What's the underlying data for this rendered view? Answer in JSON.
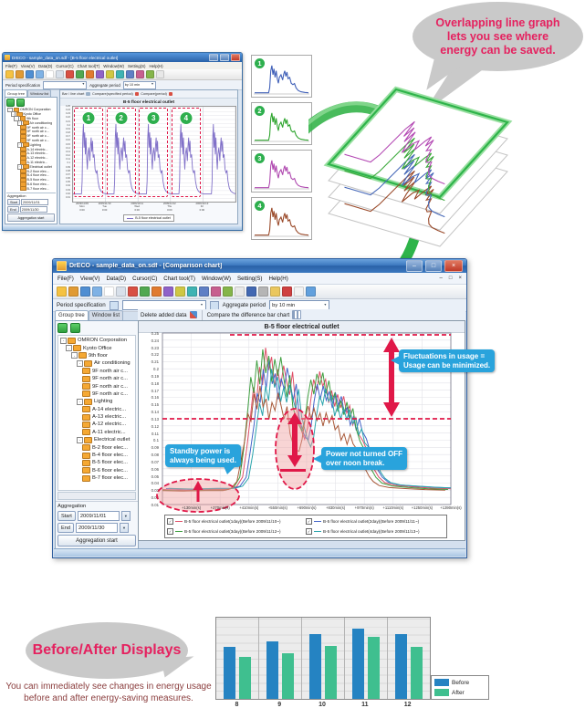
{
  "balloon_top": {
    "lines": [
      "Overlapping line graph",
      "lets you see where",
      "energy can be saved."
    ]
  },
  "balloon_bottom": {
    "title": "Before/After Displays"
  },
  "caption": {
    "line1": "You can immediately see changes in energy usage",
    "line2": "before and after energy-saving measures."
  },
  "icons": {
    "check": "✓",
    "dropdown": "▼",
    "minus": "-"
  },
  "colors": {
    "accent_pink": "#e5215f",
    "callout_blue": "#29a3dc",
    "annotation_red": "#e01848",
    "marker_green": "#2eaf4e",
    "bubble_gray": "#c9c9c9"
  },
  "toolbar_icon_colors": [
    "#f5c242",
    "#e09a33",
    "#4f8ed2",
    "#7fb2e5",
    "#ffffff",
    "#d8e0ea",
    "#d85043",
    "#51a851",
    "#e07b30",
    "#8f62c8",
    "#cfc743",
    "#3fb3b3",
    "#5f7fc5",
    "#c75f8f",
    "#85b54a",
    "#e8e8e8",
    "#4268b2",
    "#b5b5b5",
    "#eac75f",
    "#cf4040",
    "#f2f2f2",
    "#62a0dd"
  ],
  "shared": {
    "menus": [
      "File(F)",
      "View(V)",
      "Data(D)",
      "Cursor(C)",
      "Chart tool(T)",
      "Window(W)",
      "Setting(S)",
      "Help(H)"
    ],
    "tabs": [
      "Group tree",
      "Window list"
    ],
    "period_label": "Period specification",
    "aggregate_label": "Aggregate period",
    "aggregate_value": "by 10 min",
    "tree": [
      {
        "label": "OMRON Corporation",
        "depth": 0,
        "kind": "folder"
      },
      {
        "label": "Kyoto Office",
        "depth": 1,
        "kind": "folder"
      },
      {
        "label": "9th floor",
        "depth": 2,
        "kind": "folder"
      },
      {
        "label": "Air conditioning",
        "depth": 3,
        "kind": "folder"
      },
      {
        "label": "9F north air c...",
        "depth": 4,
        "kind": "leaf"
      },
      {
        "label": "9F north air c...",
        "depth": 4,
        "kind": "leaf"
      },
      {
        "label": "9F north air c...",
        "depth": 4,
        "kind": "leaf"
      },
      {
        "label": "9F north air c...",
        "depth": 4,
        "kind": "leaf"
      },
      {
        "label": "Lighting",
        "depth": 3,
        "kind": "folder"
      },
      {
        "label": "A-14 electric...",
        "depth": 4,
        "kind": "leaf"
      },
      {
        "label": "A-13 electric...",
        "depth": 4,
        "kind": "leaf"
      },
      {
        "label": "A-12 electric...",
        "depth": 4,
        "kind": "leaf"
      },
      {
        "label": "A-11 electric...",
        "depth": 4,
        "kind": "leaf"
      },
      {
        "label": "Electrical outlet",
        "depth": 3,
        "kind": "folder"
      },
      {
        "label": "B-2 floor elec...",
        "depth": 4,
        "kind": "leaf"
      },
      {
        "label": "B-4 floor elec...",
        "depth": 4,
        "kind": "leaf"
      },
      {
        "label": "B-5 floor elec...",
        "depth": 4,
        "kind": "leaf"
      },
      {
        "label": "B-6 floor elec...",
        "depth": 4,
        "kind": "leaf"
      },
      {
        "label": "B-7 floor elec...",
        "depth": 4,
        "kind": "leaf"
      }
    ],
    "aggregation": {
      "label": "Aggregation",
      "start_label": "Start",
      "start_value": "2009/11/01",
      "end_label": "End",
      "end_value": "2009/11/30",
      "button_label": "Aggregation start"
    }
  },
  "mini_window": {
    "title": "DrECO - sample_data_on.sdf - [B-5 floor electrical outlet]",
    "chart_toolbar": [
      "Bar / line chart",
      "Compare(specified period)",
      "Compare(period)"
    ],
    "legend_label": "B-5 floor electrical outlet"
  },
  "main_window": {
    "title": "DrECO - sample_data_on.sdf - [Comparison chart]",
    "chart_toolbar": [
      "Delete added data",
      "Compare the difference bar chart"
    ],
    "window_controls": {
      "minimize": "–",
      "maximize": "□",
      "close": "×"
    },
    "callouts": {
      "fluctuation": {
        "line1": "Fluctuations in usage =",
        "line2": "Usage can be minimized."
      },
      "standby": {
        "line1": "Standby power is",
        "line2": "always being used."
      },
      "noon": {
        "line1": "Power not turned OFF",
        "line2": "over noon break."
      }
    },
    "legend_items": [
      {
        "color": "#e05068",
        "label": "B-5 floor electrical outlet(1day)(Before 2009/11/10~)"
      },
      {
        "color": "#4464c8",
        "label": "B-5 floor electrical outlet(2day)(Before 2009/11/11~)"
      },
      {
        "color": "#3f9f40",
        "label": "B-5 floor electrical outlet(3day)(Before 2009/11/12~)"
      },
      {
        "color": "#2aa4ac",
        "label": "B-5 floor electrical outlet(4day)(Before 2009/11/13~)"
      }
    ]
  },
  "thumbnails": {
    "numbers": [
      "1",
      "2",
      "3",
      "4"
    ],
    "colors": [
      "#4060b8",
      "#2fa52f",
      "#b04ab0",
      "#9a4a2a"
    ]
  },
  "chart_data": [
    {
      "id": "daily-profile",
      "type": "line",
      "title": "B-5 floor electrical outlet",
      "series": [
        {
          "name": "B-5 floor electrical outlet",
          "color": "#8070c8"
        }
      ],
      "days": 5,
      "day_markers": [
        "1",
        "2",
        "3",
        "4"
      ],
      "ylim": [
        0,
        0.25
      ],
      "ytick": 0.01,
      "profile": [
        [
          0,
          0.05
        ],
        [
          0.26,
          0.05
        ],
        [
          0.28,
          0.2
        ],
        [
          0.3,
          0.72
        ],
        [
          0.32,
          0.88
        ],
        [
          0.34,
          0.6
        ],
        [
          0.36,
          0.78
        ],
        [
          0.38,
          0.52
        ],
        [
          0.4,
          0.72
        ],
        [
          0.42,
          0.48
        ],
        [
          0.44,
          0.34
        ],
        [
          0.46,
          0.52
        ],
        [
          0.49,
          0.6
        ],
        [
          0.52,
          0.44
        ],
        [
          0.54,
          0.62
        ],
        [
          0.56,
          0.72
        ],
        [
          0.58,
          0.55
        ],
        [
          0.6,
          0.68
        ],
        [
          0.62,
          0.48
        ],
        [
          0.65,
          0.52
        ],
        [
          0.68,
          0.34
        ],
        [
          0.71,
          0.3
        ],
        [
          0.74,
          0.33
        ],
        [
          0.77,
          0.2
        ],
        [
          0.81,
          0.12
        ],
        [
          0.86,
          0.08
        ],
        [
          0.93,
          0.06
        ],
        [
          1,
          0.05
        ]
      ],
      "x_labels": [
        {
          "date": "2009/11/09",
          "day": "Mon",
          "time": "0:00"
        },
        {
          "date": "2009/11/10",
          "day": "Tue",
          "time": "0:00"
        },
        {
          "date": "2009/11/11",
          "day": "Wed",
          "time": "0:00"
        },
        {
          "date": "2009/11/12",
          "day": "Thu",
          "time": "0:00"
        },
        {
          "date": "2009/11/13",
          "day": "Fri",
          "time": "0:00"
        }
      ]
    },
    {
      "id": "comparison",
      "type": "line",
      "title": "B-5 floor electrical outlet",
      "ylim": [
        0,
        0.25
      ],
      "ytick": 0.01,
      "xlim_min": [
        0,
        1440
      ],
      "x_tick_labels": [
        "+130min(s)",
        "+270min(s)",
        "+410min(s)",
        "+550min(s)",
        "+690min(s)",
        "+830min(s)",
        "+970min(s)",
        "+1110min(s)",
        "+1250min(s)",
        "+1390min(s)"
      ],
      "base_profile": [
        [
          0,
          0.022
        ],
        [
          120,
          0.021
        ],
        [
          240,
          0.022
        ],
        [
          330,
          0.022
        ],
        [
          370,
          0.026
        ],
        [
          400,
          0.04
        ],
        [
          420,
          0.08
        ],
        [
          440,
          0.13
        ],
        [
          455,
          0.175
        ],
        [
          470,
          0.155
        ],
        [
          485,
          0.205
        ],
        [
          500,
          0.175
        ],
        [
          515,
          0.225
        ],
        [
          530,
          0.19
        ],
        [
          545,
          0.21
        ],
        [
          560,
          0.17
        ],
        [
          575,
          0.2
        ],
        [
          590,
          0.178
        ],
        [
          605,
          0.208
        ],
        [
          620,
          0.182
        ],
        [
          635,
          0.158
        ],
        [
          650,
          0.188
        ],
        [
          665,
          0.14
        ],
        [
          680,
          0.122
        ],
        [
          695,
          0.108
        ],
        [
          710,
          0.1
        ],
        [
          725,
          0.118
        ],
        [
          740,
          0.155
        ],
        [
          755,
          0.182
        ],
        [
          770,
          0.162
        ],
        [
          785,
          0.188
        ],
        [
          800,
          0.168
        ],
        [
          815,
          0.182
        ],
        [
          830,
          0.152
        ],
        [
          845,
          0.172
        ],
        [
          860,
          0.148
        ],
        [
          875,
          0.162
        ],
        [
          890,
          0.138
        ],
        [
          905,
          0.152
        ],
        [
          920,
          0.128
        ],
        [
          935,
          0.142
        ],
        [
          950,
          0.118
        ],
        [
          965,
          0.132
        ],
        [
          980,
          0.108
        ],
        [
          1000,
          0.095
        ],
        [
          1020,
          0.08
        ],
        [
          1040,
          0.065
        ],
        [
          1060,
          0.05
        ],
        [
          1080,
          0.04
        ],
        [
          1110,
          0.032
        ],
        [
          1160,
          0.028
        ],
        [
          1240,
          0.026
        ],
        [
          1340,
          0.024
        ],
        [
          1440,
          0.023
        ]
      ],
      "series": [
        {
          "name": "B-5 floor electrical outlet(1day)(Before 2009/11/10~)",
          "color": "#e05068",
          "scale": 1.0,
          "dx": 0,
          "dy": 0
        },
        {
          "name": "B-5 floor electrical outlet(2day)(Before 2009/11/11~)",
          "color": "#4464c8",
          "scale": 0.92,
          "dx": 18,
          "dy": 0.003
        },
        {
          "name": "B-5 floor electrical outlet(3day)(Before 2009/11/12~)",
          "color": "#3f9f40",
          "scale": 1.04,
          "dx": -14,
          "dy": -0.002
        },
        {
          "name": "B-5 floor electrical outlet(4day)(Before 2009/11/13~)",
          "color": "#2aa4ac",
          "scale": 0.84,
          "dx": 30,
          "dy": 0.005
        },
        {
          "name": "B-5 floor electrical outlet",
          "color": "#a85838",
          "scale": 0.74,
          "dx": -28,
          "dy": 0.004
        }
      ]
    },
    {
      "id": "before-after",
      "type": "bar",
      "categories": [
        "8",
        "9",
        "10",
        "11",
        "12"
      ],
      "ylim": [
        0,
        100
      ],
      "grid": true,
      "legend_position": "right",
      "series": [
        {
          "name": "Before",
          "color": "#2583c2",
          "values": [
            65,
            72,
            82,
            89,
            82
          ]
        },
        {
          "name": "After",
          "color": "#3fbf8f",
          "values": [
            53,
            58,
            67,
            78,
            66
          ]
        }
      ]
    }
  ]
}
